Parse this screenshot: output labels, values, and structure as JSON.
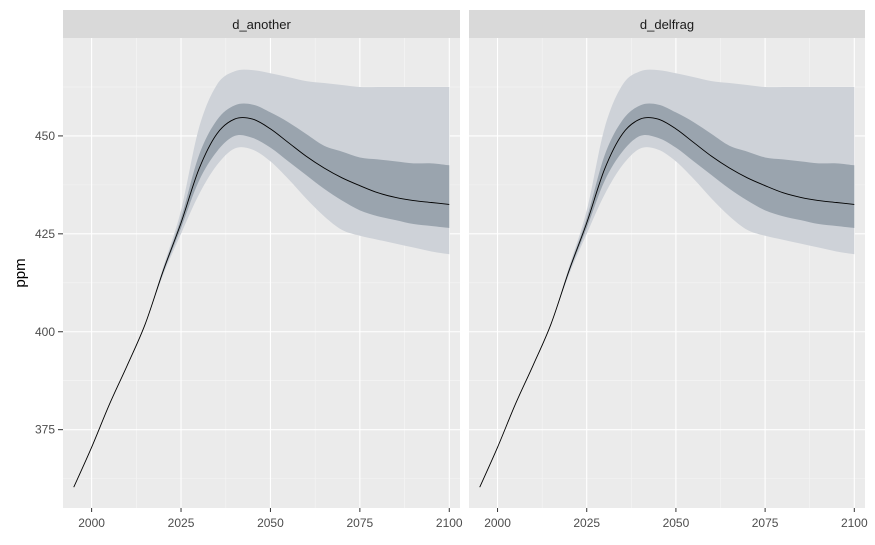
{
  "chart_data": {
    "type": "area",
    "ylabel": "ppm",
    "xlabel": "",
    "xlim": [
      1992,
      2103
    ],
    "ylim": [
      355,
      475
    ],
    "xticks": [
      2000,
      2025,
      2050,
      2075,
      2100
    ],
    "yticks": [
      375,
      400,
      425,
      450
    ],
    "grid": true,
    "colors": {
      "panel_bg": "#ebebeb",
      "strip_bg": "#d9d9d9",
      "outer_band": "#ced2d8",
      "inner_band": "#9aa4ae",
      "line": "#000000",
      "grid_major": "#ffffff",
      "tick_text": "#4d4d4d"
    },
    "facets": [
      {
        "strip_label": "d_another",
        "x": [
          1995,
          2000,
          2005,
          2010,
          2015,
          2020,
          2025,
          2030,
          2035,
          2040,
          2045,
          2050,
          2055,
          2060,
          2065,
          2070,
          2075,
          2080,
          2085,
          2090,
          2095,
          2100
        ],
        "median": [
          360.3,
          370.5,
          381.5,
          391.5,
          402,
          415.5,
          427.8,
          441.5,
          450.5,
          454.3,
          454.3,
          451.8,
          448.3,
          444.8,
          441.8,
          439.3,
          437.3,
          435.5,
          434.3,
          433.5,
          433,
          432.5
        ],
        "inner_lower": [
          360.3,
          370.5,
          381.5,
          391.5,
          402,
          415,
          426.5,
          438.5,
          446,
          450,
          449.5,
          447,
          443.5,
          440,
          436.5,
          433.5,
          431,
          429.5,
          428.5,
          427.5,
          427,
          426.5
        ],
        "inner_upper": [
          360.3,
          370.5,
          381.5,
          391.5,
          402,
          416,
          429,
          445,
          454,
          457.8,
          458,
          456,
          453.5,
          450.5,
          447.5,
          446,
          444.5,
          444,
          443.5,
          443,
          443,
          442.5
        ],
        "outer_lower": [
          360.3,
          370.5,
          381.5,
          391.5,
          402,
          414.5,
          425,
          435,
          442.5,
          446.8,
          446.5,
          443.5,
          439,
          434,
          429.5,
          426,
          424.5,
          423.5,
          422.5,
          421.5,
          420.5,
          419.8
        ],
        "outer_upper": [
          360.3,
          370.5,
          381.5,
          391.5,
          402,
          416.5,
          431,
          452,
          463,
          466.5,
          466.8,
          466,
          465,
          464,
          463.5,
          463,
          462.5,
          462.5,
          462.5,
          462.5,
          462.5,
          462.5
        ]
      },
      {
        "strip_label": "d_delfrag",
        "x": [
          1995,
          2000,
          2005,
          2010,
          2015,
          2020,
          2025,
          2030,
          2035,
          2040,
          2045,
          2050,
          2055,
          2060,
          2065,
          2070,
          2075,
          2080,
          2085,
          2090,
          2095,
          2100
        ],
        "median": [
          360.3,
          370.5,
          381.5,
          391.5,
          402,
          415.5,
          427.8,
          441.5,
          450.5,
          454.3,
          454.3,
          451.8,
          448.3,
          444.8,
          441.8,
          439.3,
          437.3,
          435.5,
          434.3,
          433.5,
          433,
          432.5
        ],
        "inner_lower": [
          360.3,
          370.5,
          381.5,
          391.5,
          402,
          415,
          426.5,
          438.5,
          446,
          450,
          449.5,
          447,
          443.5,
          440,
          436.5,
          433.5,
          431,
          429.5,
          428.5,
          427.5,
          427,
          426.5
        ],
        "inner_upper": [
          360.3,
          370.5,
          381.5,
          391.5,
          402,
          416,
          429,
          445,
          454,
          457.8,
          458,
          456,
          453.5,
          450.5,
          447.5,
          446,
          444.5,
          444,
          443.5,
          443,
          443,
          442.5
        ],
        "outer_lower": [
          360.3,
          370.5,
          381.5,
          391.5,
          402,
          414.5,
          425,
          435,
          442.5,
          446.8,
          446.5,
          443.5,
          439,
          434,
          429.5,
          426,
          424.5,
          423.5,
          422.5,
          421.5,
          420.5,
          419.8
        ],
        "outer_upper": [
          360.3,
          370.5,
          381.5,
          391.5,
          402,
          416.5,
          431,
          452,
          463,
          466.5,
          466.8,
          466,
          465,
          464,
          463.5,
          463,
          462.5,
          462.5,
          462.5,
          462.5,
          462.5,
          462.5
        ]
      }
    ]
  }
}
